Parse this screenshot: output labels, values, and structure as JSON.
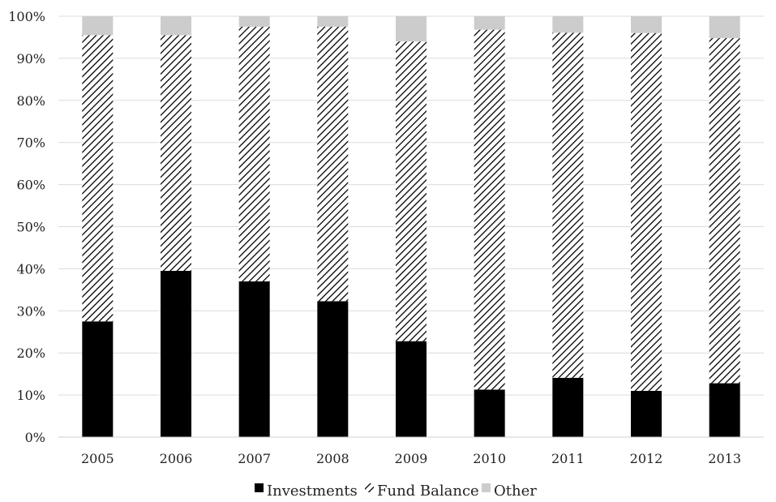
{
  "chart_data": {
    "type": "bar",
    "stacked": true,
    "categories": [
      "2005",
      "2006",
      "2007",
      "2008",
      "2009",
      "2010",
      "2011",
      "2012",
      "2013"
    ],
    "series": [
      {
        "name": "Investments",
        "pattern": "solid",
        "color": "#000000",
        "values": [
          27.5,
          39.5,
          37,
          32.3,
          22.8,
          11.3,
          14.1,
          11,
          12.8
        ]
      },
      {
        "name": "Fund Balance",
        "pattern": "diagonal-hatch",
        "color": "#000000",
        "values": [
          68,
          56,
          60.5,
          65.2,
          71.2,
          85.5,
          82,
          85,
          82
        ]
      },
      {
        "name": "Other",
        "pattern": "solid",
        "color": "#cccccc",
        "values": [
          4.5,
          4.5,
          2.5,
          2.5,
          6,
          3.2,
          3.9,
          4,
          5.2
        ]
      }
    ],
    "ylim": [
      0,
      100
    ],
    "y_ticks": [
      "0%",
      "10%",
      "20%",
      "30%",
      "40%",
      "50%",
      "60%",
      "70%",
      "80%",
      "90%",
      "100%"
    ],
    "grid": true,
    "legend_position": "bottom",
    "title": "",
    "xlabel": "",
    "ylabel": ""
  }
}
